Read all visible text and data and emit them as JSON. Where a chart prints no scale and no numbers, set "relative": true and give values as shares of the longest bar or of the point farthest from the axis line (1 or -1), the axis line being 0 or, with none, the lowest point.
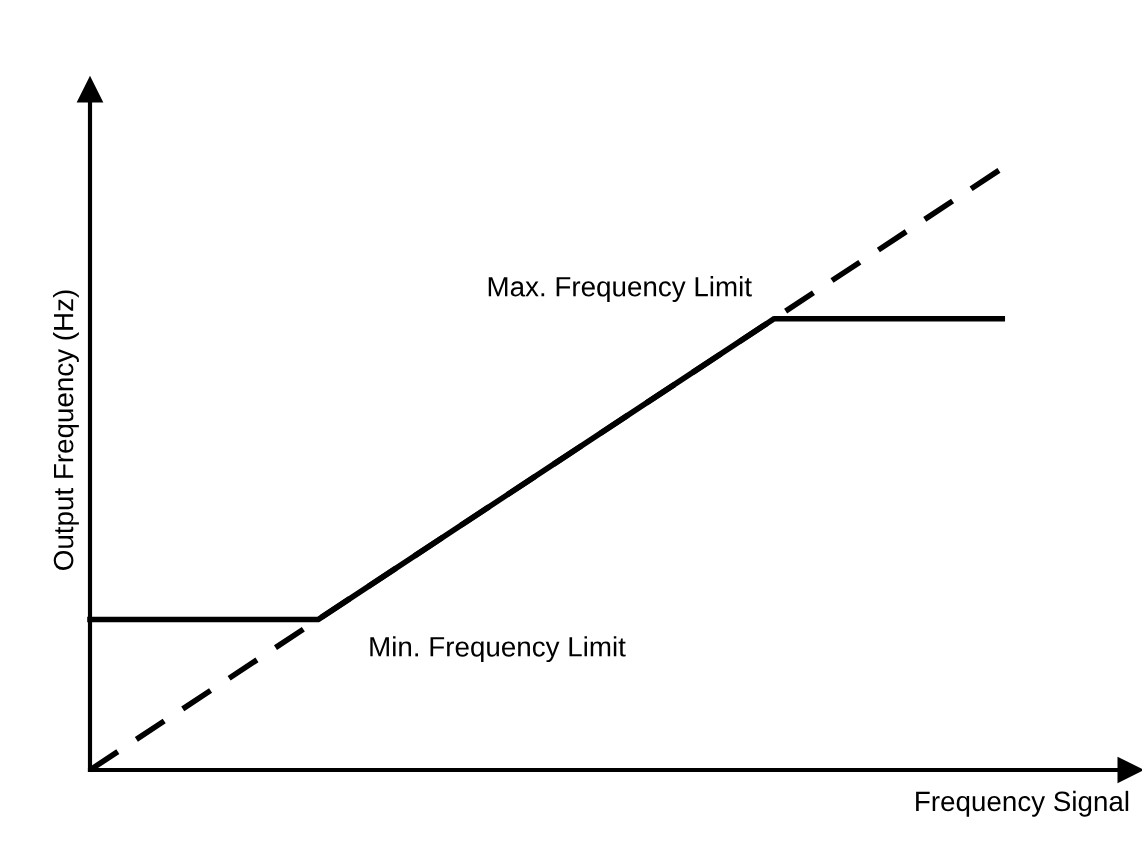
{
  "chart_data": {
    "type": "line",
    "relative": true,
    "xlabel": "Frequency Signal",
    "ylabel": "Output Frequency (Hz)",
    "categories": [
      null,
      null,
      null,
      null,
      null
    ],
    "series": [
      {
        "color": "#000000",
        "line_style": "solid",
        "values": [
          0.25,
          0.25,
          0.5,
          0.75,
          0.75
        ]
      },
      {
        "color": "#000000",
        "line_style": "dashed",
        "values": [
          0,
          0.25,
          0.5,
          0.75,
          1
        ]
      }
    ],
    "annotations": [
      "Max. Frequency Limit",
      "Min. Frequency Limit"
    ],
    "legend": false,
    "marker": "none"
  }
}
